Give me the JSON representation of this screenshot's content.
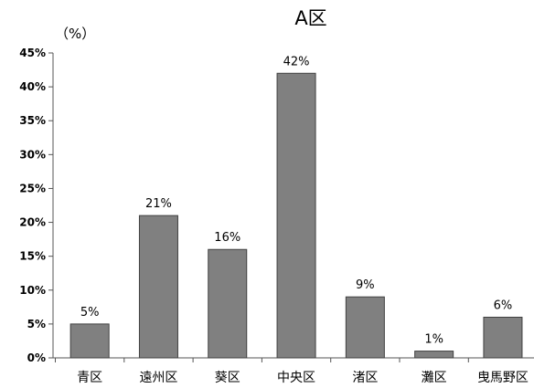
{
  "chart_data": {
    "type": "bar",
    "title": "A区",
    "unit_label": "（%）",
    "categories": [
      "青区",
      "遠州区",
      "葵区",
      "中央区",
      "渚区",
      "灘区",
      "曳馬野区"
    ],
    "values": [
      5,
      21,
      16,
      42,
      9,
      1,
      6
    ],
    "data_labels": [
      "5%",
      "21%",
      "16%",
      "42%",
      "9%",
      "1%",
      "6%"
    ],
    "yticks": [
      0,
      5,
      10,
      15,
      20,
      25,
      30,
      35,
      40,
      45
    ],
    "ytick_labels": [
      "0%",
      "5%",
      "10%",
      "15%",
      "20%",
      "25%",
      "30%",
      "35%",
      "40%",
      "45%"
    ],
    "ylim": [
      0,
      45
    ],
    "xlabel": "",
    "ylabel": "",
    "grid": false,
    "legend": "none",
    "bar_color": "#808080",
    "bar_edge_color": "#404040"
  }
}
